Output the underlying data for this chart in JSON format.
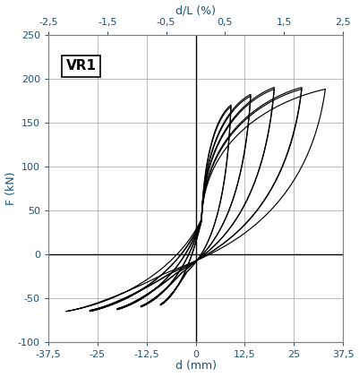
{
  "xlabel_bottom": "d (mm)",
  "xlabel_top": "d/L (%)",
  "ylabel": "F (kN)",
  "label": "VR1",
  "xlim": [
    -37.5,
    37.5
  ],
  "ylim": [
    -100,
    250
  ],
  "xticks_bottom": [
    -37.5,
    -25,
    -12.5,
    0,
    12.5,
    25,
    37.5
  ],
  "xticks_bottom_labels": [
    "-37,5",
    "-25",
    "-12,5",
    "0",
    "12,5",
    "25",
    "37,5"
  ],
  "xticks_top": [
    -2.5,
    -1.5,
    -0.5,
    0.5,
    1.5,
    2.5
  ],
  "xticks_top_labels": [
    "-2,5",
    "-1,5",
    "-0,5",
    "0,5",
    "1,5",
    "2,5"
  ],
  "yticks": [
    -100,
    -50,
    0,
    50,
    100,
    150,
    200,
    250
  ],
  "line_color": "#000000",
  "background_color": "#ffffff",
  "grid_color": "#b0b0b0",
  "axis_color": "#808080",
  "label_color": "#1a5276",
  "loop_params": [
    {
      "ppx": 9,
      "ppy": 170,
      "pnx": -9,
      "pny": -58,
      "ox": 1.5,
      "oy": 40
    },
    {
      "ppx": 9,
      "ppy": 168,
      "pnx": -9,
      "pny": -57,
      "ox": 1.5,
      "oy": 38
    },
    {
      "ppx": 14,
      "ppy": 182,
      "pnx": -14,
      "pny": -60,
      "ox": 1.5,
      "oy": 40
    },
    {
      "ppx": 14,
      "ppy": 180,
      "pnx": -14,
      "pny": -59,
      "ox": 1.5,
      "oy": 38
    },
    {
      "ppx": 20,
      "ppy": 190,
      "pnx": -20,
      "pny": -63,
      "ox": 1.5,
      "oy": 40
    },
    {
      "ppx": 20,
      "ppy": 188,
      "pnx": -20,
      "pny": -62,
      "ox": 1.5,
      "oy": 38
    },
    {
      "ppx": 27,
      "ppy": 190,
      "pnx": -27,
      "pny": -65,
      "ox": 1.5,
      "oy": 40
    },
    {
      "ppx": 27,
      "ppy": 188,
      "pnx": -27,
      "pny": -64,
      "ox": 1.5,
      "oy": 38
    },
    {
      "ppx": 33,
      "ppy": 188,
      "pnx": -33,
      "pny": -65,
      "ox": 1.5,
      "oy": 40
    }
  ]
}
